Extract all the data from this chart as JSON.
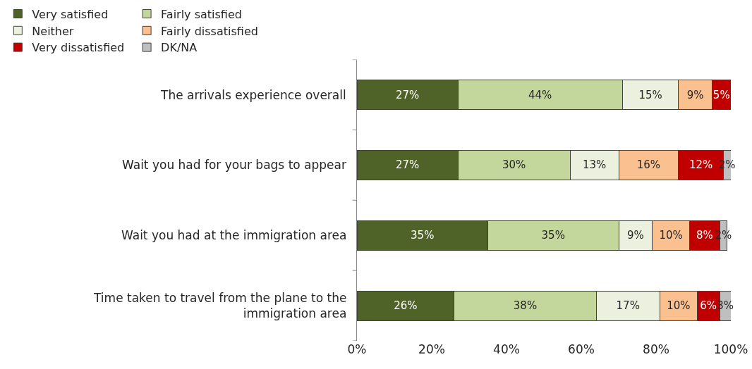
{
  "chart_data": {
    "type": "bar",
    "orientation": "horizontal",
    "stacked": true,
    "legend": "top",
    "grid": false,
    "categories": [
      "The arrivals experience overall",
      "Wait you had for your bags to appear",
      "Wait you had at the immigration area",
      "Time taken to travel from the plane to the immigration area"
    ],
    "xlim": [
      0,
      100
    ],
    "xticks": [
      {
        "value": 0,
        "label": "0%"
      },
      {
        "value": 20,
        "label": "20%"
      },
      {
        "value": 40,
        "label": "40%"
      },
      {
        "value": 60,
        "label": "60%"
      },
      {
        "value": 80,
        "label": "80%"
      },
      {
        "value": 100,
        "label": "100%"
      }
    ],
    "series": [
      {
        "name": "Very satisfied",
        "color": "#4f6228",
        "values": [
          27,
          27,
          35,
          26
        ],
        "value_labels": [
          "27%",
          "27%",
          "35%",
          "26%"
        ]
      },
      {
        "name": "Fairly satisfied",
        "color": "#c3d69b",
        "values": [
          44,
          30,
          35,
          38
        ],
        "value_labels": [
          "44%",
          "30%",
          "35%",
          "38%"
        ]
      },
      {
        "name": "Neither",
        "color": "#ebf1de",
        "values": [
          15,
          13,
          9,
          17
        ],
        "value_labels": [
          "15%",
          "13%",
          "9%",
          "17%"
        ]
      },
      {
        "name": "Fairly dissatisfied",
        "color": "#fac090",
        "values": [
          9,
          16,
          10,
          10
        ],
        "value_labels": [
          "9%",
          "16%",
          "10%",
          "10%"
        ]
      },
      {
        "name": "Very dissatisfied",
        "color": "#c00000",
        "values": [
          5,
          12,
          8,
          6
        ],
        "value_labels": [
          "5%",
          "12%",
          "8%",
          "6%"
        ]
      },
      {
        "name": "DK/NA",
        "color": "#bfbfbf",
        "values": [
          null,
          2,
          2,
          3
        ],
        "value_labels": [
          null,
          "2%",
          "2%",
          "3%"
        ]
      }
    ]
  }
}
